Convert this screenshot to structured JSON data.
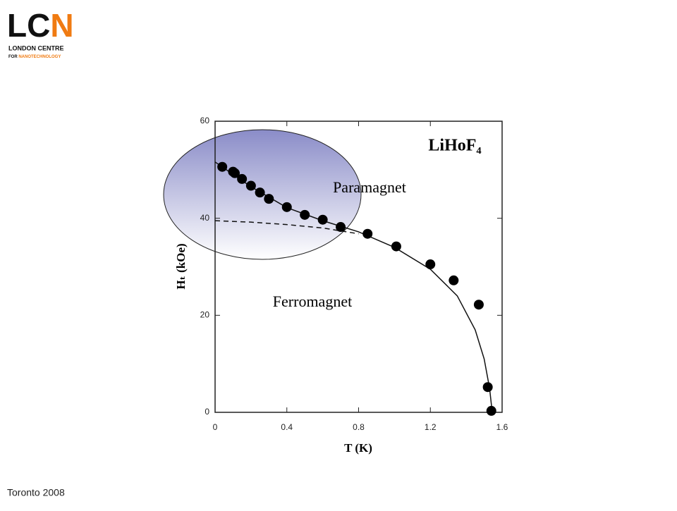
{
  "logo": {
    "mark_a": "LC",
    "mark_b": "N",
    "line1": "LONDON CENTRE",
    "line2_a": "FOR",
    "line2_b": "NANOTECHNOLOGY"
  },
  "footer": "Toronto 2008",
  "chart_data": {
    "type": "scatter",
    "title": "LiHoF₄",
    "xlabel": "T (K)",
    "ylabel": "Hₜ (kOe)",
    "annotations": [
      "Paramagnet",
      "Ferromagnet"
    ],
    "x": [
      0.04,
      0.1,
      0.11,
      0.15,
      0.2,
      0.25,
      0.3,
      0.4,
      0.5,
      0.6,
      0.7,
      0.85,
      1.01,
      1.2,
      1.33,
      1.47,
      1.52,
      1.54
    ],
    "values": [
      50.6,
      49.6,
      49.3,
      48.1,
      46.7,
      45.3,
      44.0,
      42.3,
      40.7,
      39.7,
      38.2,
      36.8,
      34.2,
      30.5,
      27.2,
      22.2,
      5.2,
      0.3
    ],
    "color": "#000000",
    "fits": [
      {
        "dashed": false,
        "x": [
          0,
          0.2,
          0.4,
          0.6,
          0.8,
          1.0,
          1.2,
          1.35,
          1.45,
          1.5,
          1.53,
          1.545
        ],
        "y": [
          51.6,
          46.5,
          42.2,
          39.5,
          37.2,
          34.0,
          29.5,
          24,
          17,
          11,
          5,
          0
        ]
      },
      {
        "dashed": true,
        "x": [
          0,
          0.2,
          0.4,
          0.6,
          0.8
        ],
        "y": [
          39.5,
          39.2,
          38.7,
          38.0,
          36.8
        ]
      }
    ],
    "xlim": [
      0,
      1.6
    ],
    "xticks": [
      0,
      0.4,
      0.8,
      1.2,
      1.6
    ],
    "ylim": [
      0,
      60
    ],
    "yticks": [
      0,
      20,
      40,
      60
    ]
  }
}
